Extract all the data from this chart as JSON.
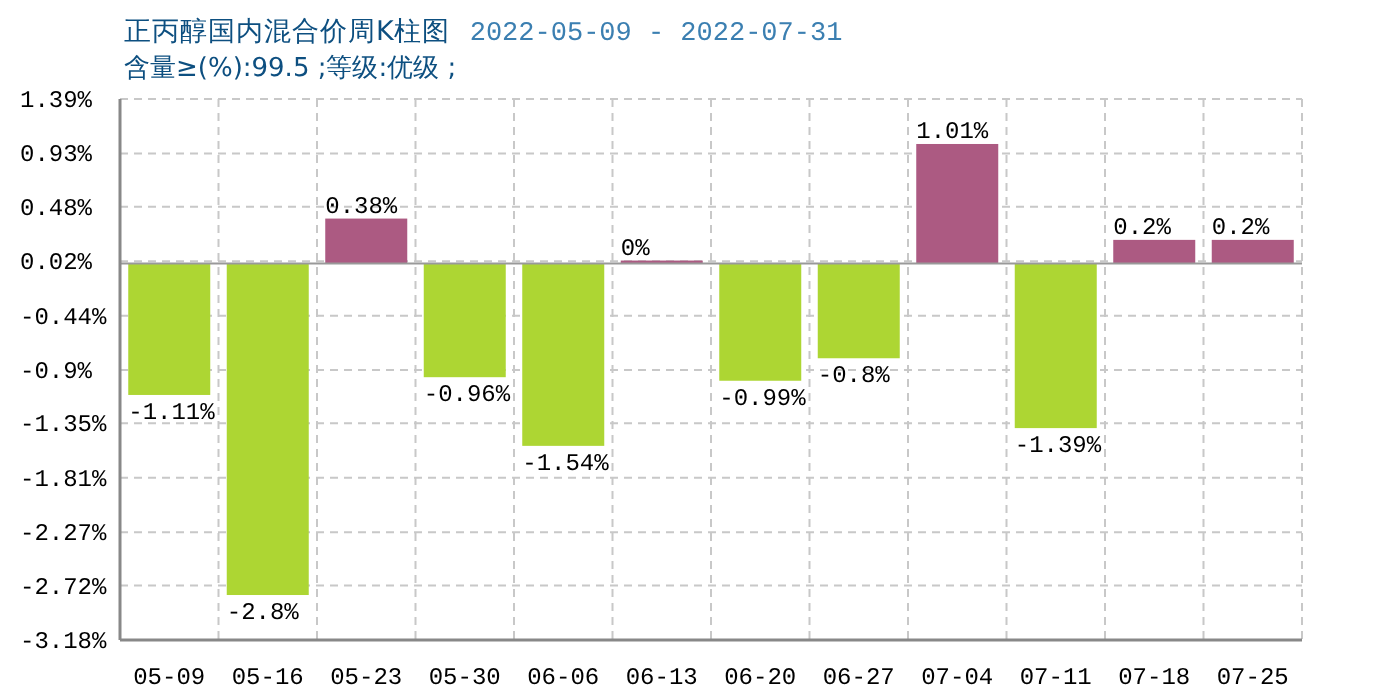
{
  "chart_data": {
    "type": "bar",
    "title": "正丙醇国内混合价周K柱图",
    "subtitle": "2022-05-09 - 2022-07-31",
    "annotations": [
      "含量≥(%):99.5 ;等级:优级 ;"
    ],
    "categories": [
      "05-09",
      "05-16",
      "05-23",
      "05-30",
      "06-06",
      "06-13",
      "06-20",
      "06-27",
      "07-04",
      "07-11",
      "07-18",
      "07-25"
    ],
    "values": [
      -1.11,
      -2.8,
      0.38,
      -0.96,
      -1.54,
      0,
      -0.99,
      -0.8,
      1.01,
      -1.39,
      0.2,
      0.2
    ],
    "value_labels": [
      "-1.11%",
      "-2.8%",
      "0.38%",
      "-0.96%",
      "-1.54%",
      "0%",
      "-0.99%",
      "-0.8%",
      "1.01%",
      "-1.39%",
      "0.2%",
      "0.2%"
    ],
    "colors": [
      "#add633",
      "#add633",
      "#ac5a82",
      "#add633",
      "#add633",
      "#ac5a82",
      "#add633",
      "#add633",
      "#ac5a82",
      "#add633",
      "#ac5a82",
      "#ac5a82"
    ],
    "ylim": [
      -3.18,
      1.39
    ],
    "yticks": [
      {
        "value": 1.39,
        "label": "1.39%"
      },
      {
        "value": 0.93,
        "label": "0.93%"
      },
      {
        "value": 0.48,
        "label": "0.48%"
      },
      {
        "value": 0.02,
        "label": "0.02%"
      },
      {
        "value": -0.44,
        "label": "-0.44%"
      },
      {
        "value": -0.9,
        "label": "-0.9%"
      },
      {
        "value": -1.35,
        "label": "-1.35%"
      },
      {
        "value": -1.81,
        "label": "-1.81%"
      },
      {
        "value": -2.27,
        "label": "-2.27%"
      },
      {
        "value": -2.72,
        "label": "-2.72%"
      },
      {
        "value": -3.18,
        "label": "-3.18%"
      }
    ],
    "grid": true
  }
}
